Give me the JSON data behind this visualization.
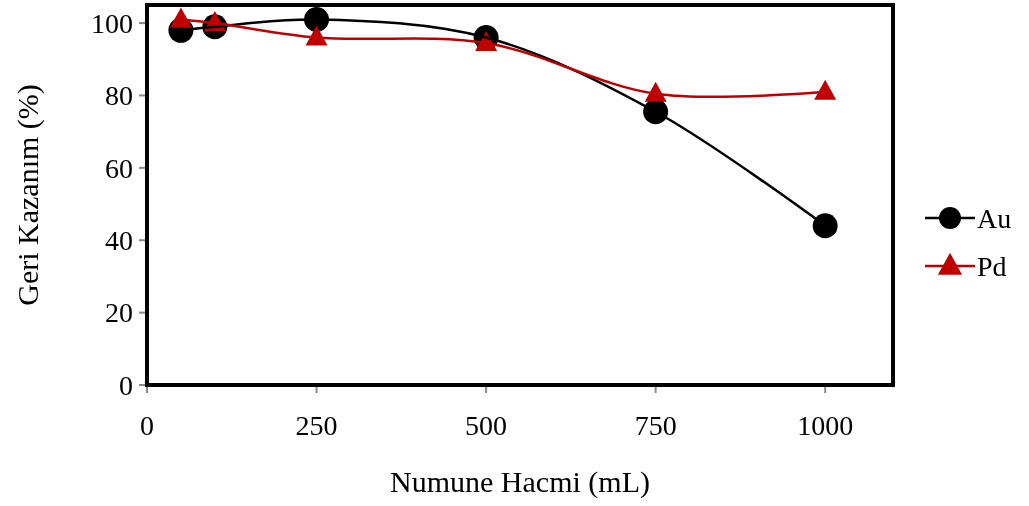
{
  "chart_data": {
    "type": "line",
    "xlabel": "Numune Hacmi (mL)",
    "ylabel": "Geri Kazanım (%)",
    "x": [
      50,
      100,
      250,
      500,
      750,
      1000
    ],
    "series": [
      {
        "name": "Au",
        "color": "#000000",
        "marker": "circle",
        "values": [
          98,
          99,
          101,
          96,
          75.5,
          44
        ]
      },
      {
        "name": "Pd",
        "color": "#c00000",
        "marker": "triangle",
        "values": [
          101,
          100,
          96,
          94.5,
          80.5,
          81
        ]
      }
    ],
    "xlim": [
      0,
      1100
    ],
    "ylim": [
      0,
      105
    ],
    "xticks": [
      0,
      250,
      500,
      750,
      1000
    ],
    "yticks": [
      0,
      20,
      40,
      60,
      80,
      100
    ],
    "grid": false,
    "legend": "right",
    "line_style": "solid"
  }
}
